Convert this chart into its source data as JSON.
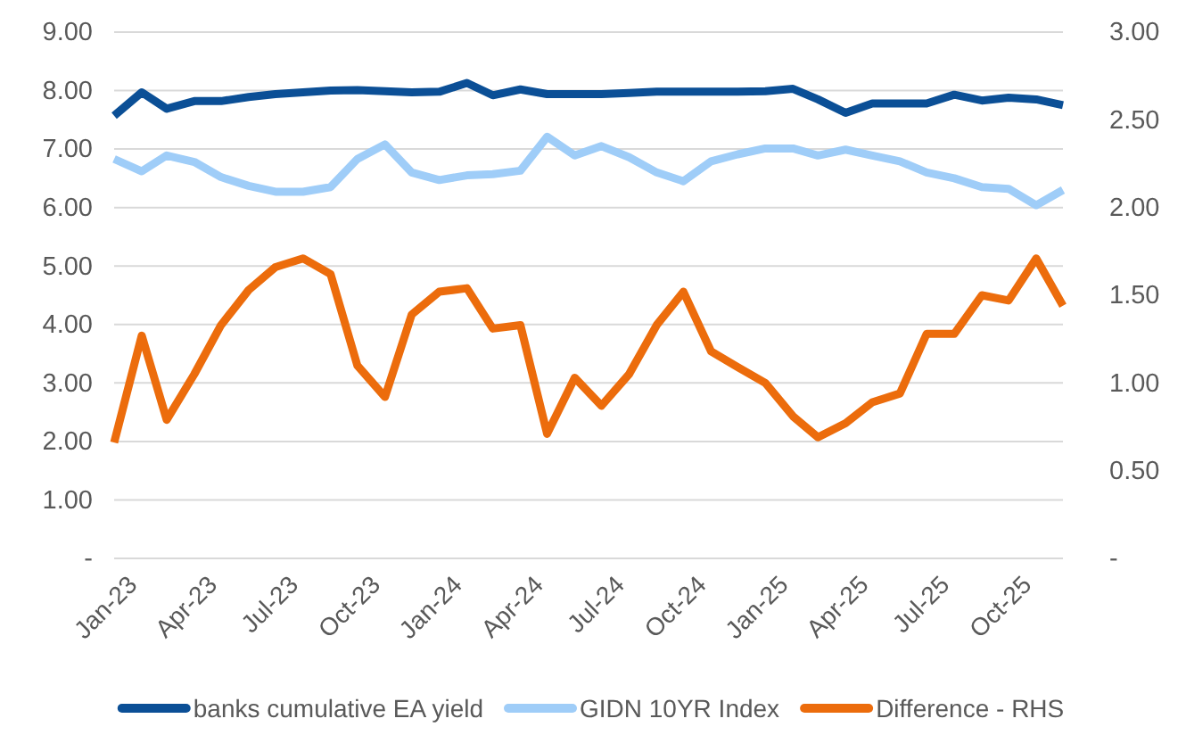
{
  "chart_data": {
    "type": "line",
    "x": [
      "2023-01",
      "2023-02",
      "2023-03",
      "2023-04",
      "2023-05",
      "2023-06",
      "2023-07",
      "2023-08",
      "2023-09",
      "2023-10",
      "2023-11",
      "2023-12",
      "2024-01",
      "2024-02",
      "2024-03",
      "2024-04",
      "2024-05",
      "2024-06",
      "2024-07",
      "2024-08",
      "2024-09",
      "2024-10",
      "2024-11",
      "2024-12",
      "2025-01",
      "2025-02",
      "2025-03",
      "2025-04",
      "2025-05",
      "2025-06",
      "2025-07",
      "2025-08",
      "2025-09",
      "2025-10",
      "2025-11",
      "2025-12"
    ],
    "series": [
      {
        "name": "banks cumulative EA yield",
        "color": "#0b4f96",
        "values": [
          7.57,
          7.97,
          7.69,
          7.82,
          7.82,
          7.89,
          7.94,
          7.97,
          8.0,
          8.01,
          7.99,
          7.97,
          7.98,
          8.13,
          7.92,
          8.02,
          7.94,
          7.94,
          7.94,
          7.96,
          7.98,
          7.98,
          7.98,
          7.98,
          7.99,
          8.03,
          7.85,
          7.62,
          7.78,
          7.78,
          7.78,
          7.93,
          7.83,
          7.88,
          7.85,
          7.75
        ]
      },
      {
        "name": "GIDN 10YR Index",
        "color": "#9fcdf8",
        "values": [
          6.83,
          6.62,
          6.89,
          6.78,
          6.52,
          6.37,
          6.27,
          6.27,
          6.35,
          6.83,
          7.08,
          6.6,
          6.47,
          6.55,
          6.57,
          6.63,
          7.21,
          6.89,
          7.05,
          6.86,
          6.6,
          6.45,
          6.79,
          6.91,
          7.01,
          7.01,
          6.89,
          6.99,
          6.89,
          6.79,
          6.6,
          6.5,
          6.35,
          6.32,
          6.04,
          6.3
        ]
      },
      {
        "name": "Difference - RHS",
        "color": "#ec6c0c",
        "axis": "y2",
        "values": [
          0.66,
          1.27,
          0.79,
          1.05,
          1.33,
          1.53,
          1.66,
          1.71,
          1.62,
          1.1,
          0.92,
          1.39,
          1.52,
          1.54,
          1.31,
          1.33,
          0.71,
          1.03,
          0.87,
          1.05,
          1.33,
          1.52,
          1.18,
          1.09,
          1.0,
          0.81,
          0.69,
          0.77,
          0.89,
          0.94,
          1.28,
          1.28,
          1.5,
          1.47,
          1.71,
          1.44
        ]
      }
    ],
    "xlim": [
      "2023-01",
      "2025-12"
    ],
    "xticks": [
      {
        "value": "2023-01",
        "label": "Jan-23"
      },
      {
        "value": "2023-04",
        "label": "Apr-23"
      },
      {
        "value": "2023-07",
        "label": "Jul-23"
      },
      {
        "value": "2023-10",
        "label": "Oct-23"
      },
      {
        "value": "2024-01",
        "label": "Jan-24"
      },
      {
        "value": "2024-04",
        "label": "Apr-24"
      },
      {
        "value": "2024-07",
        "label": "Jul-24"
      },
      {
        "value": "2024-10",
        "label": "Oct-24"
      },
      {
        "value": "2025-01",
        "label": "Jan-25"
      },
      {
        "value": "2025-04",
        "label": "Apr-25"
      },
      {
        "value": "2025-07",
        "label": "Jul-25"
      },
      {
        "value": "2025-10",
        "label": "Oct-25"
      }
    ],
    "ylim": [
      0,
      9
    ],
    "yticks": [
      {
        "value": 0,
        "label": "-"
      },
      {
        "value": 1,
        "label": "1.00"
      },
      {
        "value": 2,
        "label": "2.00"
      },
      {
        "value": 3,
        "label": "3.00"
      },
      {
        "value": 4,
        "label": "4.00"
      },
      {
        "value": 5,
        "label": "5.00"
      },
      {
        "value": 6,
        "label": "6.00"
      },
      {
        "value": 7,
        "label": "7.00"
      },
      {
        "value": 8,
        "label": "8.00"
      },
      {
        "value": 9,
        "label": "9.00"
      }
    ],
    "y2lim": [
      0,
      3
    ],
    "y2ticks": [
      {
        "value": 0,
        "label": "-"
      },
      {
        "value": 0.5,
        "label": "0.50"
      },
      {
        "value": 1,
        "label": "1.00"
      },
      {
        "value": 1.5,
        "label": "1.50"
      },
      {
        "value": 2,
        "label": "2.00"
      },
      {
        "value": 2.5,
        "label": "2.50"
      },
      {
        "value": 3,
        "label": "3.00"
      }
    ],
    "grid": "y",
    "legend": "bottom",
    "marker": "none",
    "line_style": "solid"
  }
}
